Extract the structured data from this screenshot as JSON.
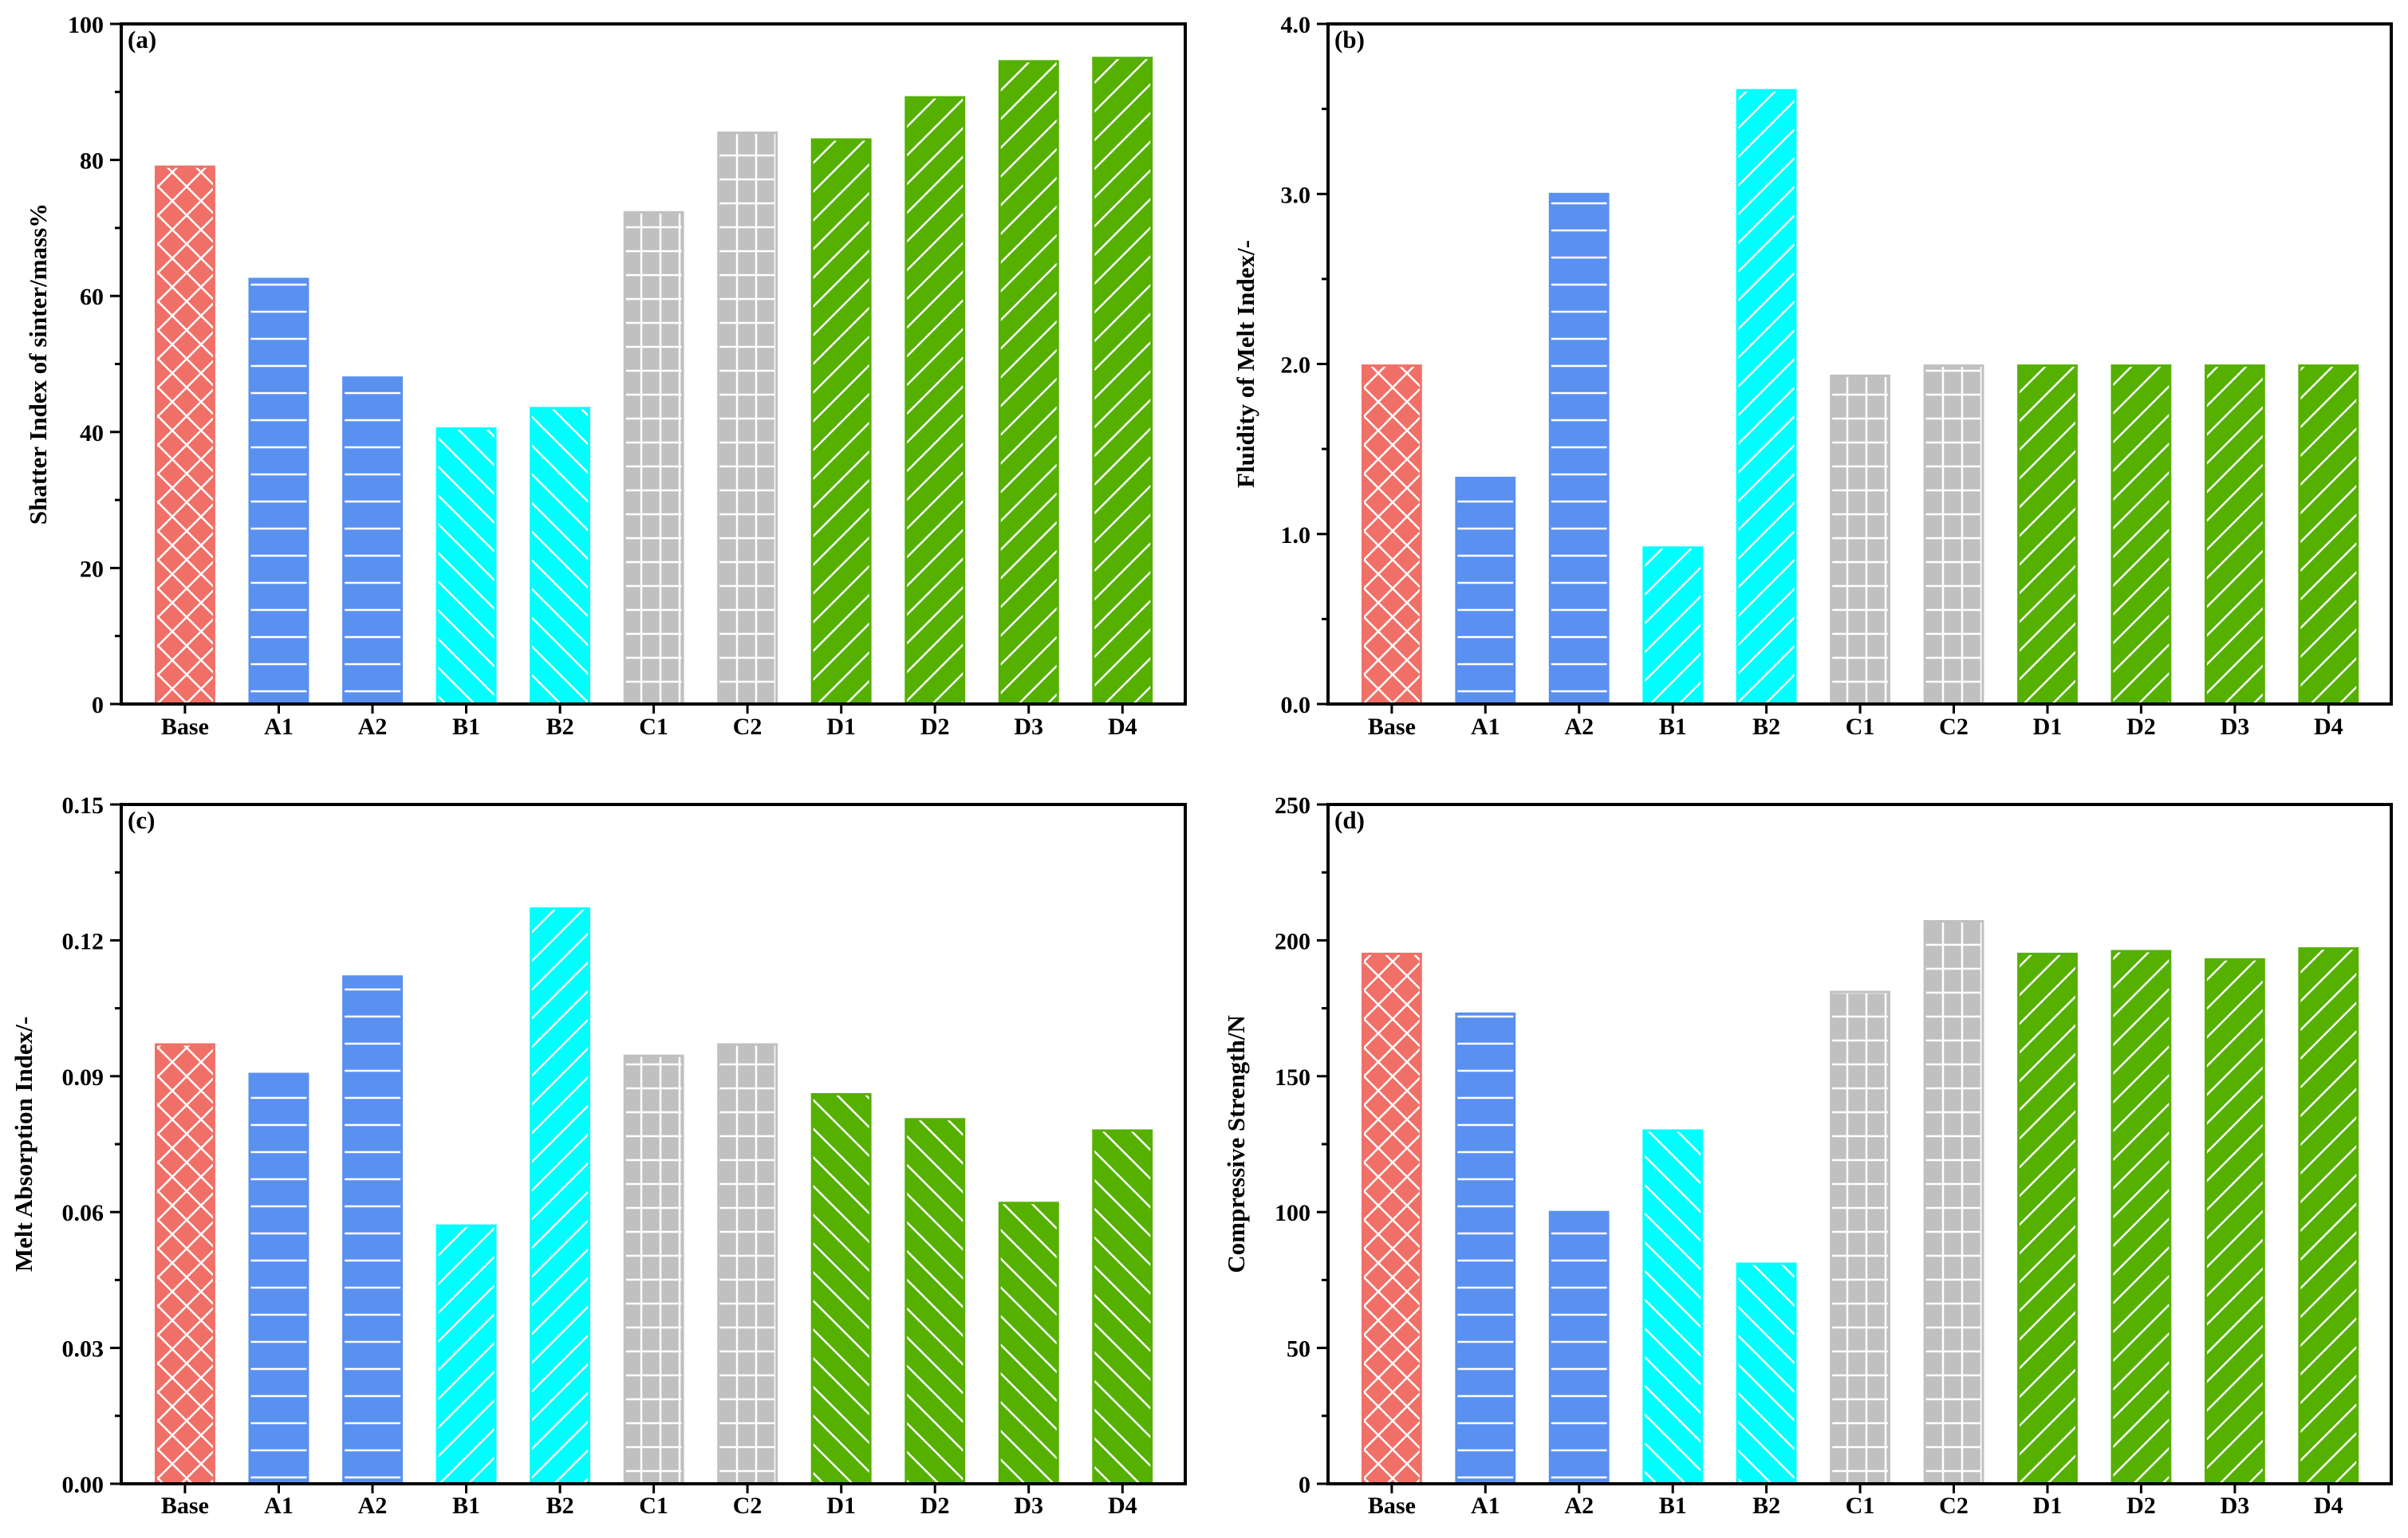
{
  "chart_data": [
    {
      "panel": "(a)",
      "type": "bar",
      "ylabel": "Shatter Index of sinter/mass%",
      "ylim": [
        0,
        100
      ],
      "yticks": [
        "0",
        "20",
        "40",
        "60",
        "80",
        "100"
      ],
      "categories": [
        "Base",
        "A1",
        "A2",
        "B1",
        "B2",
        "C1",
        "C2",
        "D1",
        "D2",
        "D3",
        "D4"
      ],
      "values": [
        79.0,
        62.5,
        48.0,
        40.5,
        43.5,
        72.3,
        84.0,
        83.0,
        89.2,
        94.5,
        95.0
      ],
      "grid": false
    },
    {
      "panel": "(b)",
      "type": "bar",
      "ylabel": "Fluidity of Melt Index/-",
      "ylim": [
        0,
        4
      ],
      "yticks": [
        "0.0",
        "1.0",
        "2.0",
        "3.0",
        "4.0"
      ],
      "categories": [
        "Base",
        "A1",
        "A2",
        "B1",
        "B2",
        "C1",
        "C2",
        "D1",
        "D2",
        "D3",
        "D4"
      ],
      "values": [
        1.99,
        1.33,
        3.0,
        0.92,
        3.61,
        1.93,
        1.99,
        1.99,
        1.99,
        1.99,
        1.99
      ],
      "grid": false
    },
    {
      "panel": "(c)",
      "type": "bar",
      "ylabel": "Melt Absorption Index/-",
      "ylim": [
        0,
        0.15
      ],
      "yticks": [
        "0.00",
        "0.03",
        "0.06",
        "0.09",
        "0.12",
        "0.15"
      ],
      "categories": [
        "Base",
        "A1",
        "A2",
        "B1",
        "B2",
        "C1",
        "C2",
        "D1",
        "D2",
        "D3",
        "D4"
      ],
      "values": [
        0.097,
        0.0905,
        0.112,
        0.057,
        0.127,
        0.0945,
        0.097,
        0.086,
        0.0805,
        0.062,
        0.078
      ],
      "grid": false
    },
    {
      "panel": "(d)",
      "type": "bar",
      "ylabel": "Compressive Strength/N",
      "ylim": [
        0,
        250
      ],
      "yticks": [
        "0",
        "50",
        "100",
        "150",
        "200",
        "250"
      ],
      "categories": [
        "Base",
        "A1",
        "A2",
        "B1",
        "B2",
        "C1",
        "C2",
        "D1",
        "D2",
        "D3",
        "D4"
      ],
      "values": [
        195,
        173,
        100,
        130,
        81,
        181,
        207,
        195,
        196,
        193,
        197
      ],
      "grid": false
    }
  ],
  "style": {
    "bar_colors": {
      "Base": "#f07068",
      "A": "#5a90f0",
      "B": "#00ffff",
      "C": "#c0c0c0",
      "D": "#55b000"
    }
  }
}
